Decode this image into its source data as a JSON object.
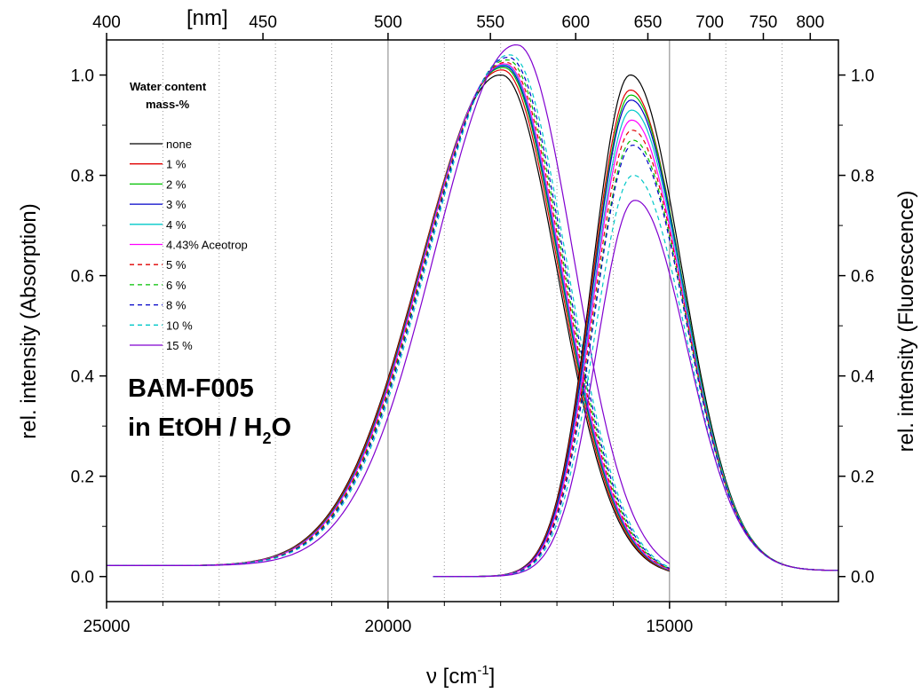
{
  "chart_data": {
    "type": "line",
    "xlabel": "ν [cm",
    "xlabel_sup": "-1",
    "xlabel_close": "]",
    "ylabel_left": "rel. intensity (Absorption)",
    "ylabel_right": "rel. intensity (Fluorescence)",
    "top_axis_unit": "[nm]",
    "xlim": [
      25000,
      12000
    ],
    "ylim": [
      -0.05,
      1.07
    ],
    "x_ticks": [
      "25000",
      "20000",
      "15000"
    ],
    "x_tick_values": [
      25000,
      20000,
      15000
    ],
    "y_ticks": [
      "0.0",
      "0.2",
      "0.4",
      "0.6",
      "0.8",
      "1.0"
    ],
    "y_tick_values": [
      0,
      0.2,
      0.4,
      0.6,
      0.8,
      1.0
    ],
    "top_ticks": [
      "400",
      "450",
      "500",
      "550",
      "600",
      "650",
      "700",
      "750",
      "800"
    ],
    "top_tick_values_nm": [
      400,
      450,
      500,
      550,
      600,
      650,
      700,
      750,
      800
    ],
    "grid_solid_x": [
      20000,
      15000
    ],
    "grid_dotted_x": [
      24000,
      23000,
      22000,
      21000,
      19000,
      18000,
      17000,
      16000,
      14000,
      13000
    ],
    "legend": {
      "title_line1": "Water content",
      "title_line2": "mass-%",
      "position": "top-left"
    },
    "annotation_line1": "BAM-F005",
    "annotation_line2_prefix": "in EtOH / H",
    "annotation_line2_sub": "2",
    "annotation_line2_suffix": "O",
    "series": [
      {
        "name": "none",
        "color": "#000000",
        "dash": "solid",
        "abs_peak_x": 17980,
        "abs_peak_y": 1.0,
        "fl_peak_x": 15700,
        "fl_peak_y": 1.0
      },
      {
        "name": "1 %",
        "color": "#e00000",
        "dash": "solid",
        "abs_peak_x": 17960,
        "abs_peak_y": 1.01,
        "fl_peak_x": 15700,
        "fl_peak_y": 0.97
      },
      {
        "name": "2 %",
        "color": "#00c000",
        "dash": "solid",
        "abs_peak_x": 17940,
        "abs_peak_y": 1.015,
        "fl_peak_x": 15690,
        "fl_peak_y": 0.96
      },
      {
        "name": "3 %",
        "color": "#0000c8",
        "dash": "solid",
        "abs_peak_x": 17930,
        "abs_peak_y": 1.018,
        "fl_peak_x": 15690,
        "fl_peak_y": 0.95
      },
      {
        "name": "4 %",
        "color": "#00c8c8",
        "dash": "solid",
        "abs_peak_x": 17920,
        "abs_peak_y": 1.02,
        "fl_peak_x": 15680,
        "fl_peak_y": 0.93
      },
      {
        "name": "4.43% Aceotrop",
        "color": "#ff00ff",
        "dash": "solid",
        "abs_peak_x": 17910,
        "abs_peak_y": 1.022,
        "fl_peak_x": 15680,
        "fl_peak_y": 0.91
      },
      {
        "name": "5 %",
        "color": "#e00000",
        "dash": "dashed",
        "abs_peak_x": 17890,
        "abs_peak_y": 1.025,
        "fl_peak_x": 15670,
        "fl_peak_y": 0.89
      },
      {
        "name": "6 %",
        "color": "#00c000",
        "dash": "dashed",
        "abs_peak_x": 17870,
        "abs_peak_y": 1.03,
        "fl_peak_x": 15660,
        "fl_peak_y": 0.87
      },
      {
        "name": "8 %",
        "color": "#0000c8",
        "dash": "dashed",
        "abs_peak_x": 17850,
        "abs_peak_y": 1.035,
        "fl_peak_x": 15660,
        "fl_peak_y": 0.86
      },
      {
        "name": "10 %",
        "color": "#00c8c8",
        "dash": "dashed",
        "abs_peak_x": 17820,
        "abs_peak_y": 1.04,
        "fl_peak_x": 15650,
        "fl_peak_y": 0.8
      },
      {
        "name": "15 %",
        "color": "#8000d0",
        "dash": "solid",
        "abs_peak_x": 17700,
        "abs_peak_y": 1.06,
        "fl_peak_x": 15620,
        "fl_peak_y": 0.75
      }
    ]
  }
}
